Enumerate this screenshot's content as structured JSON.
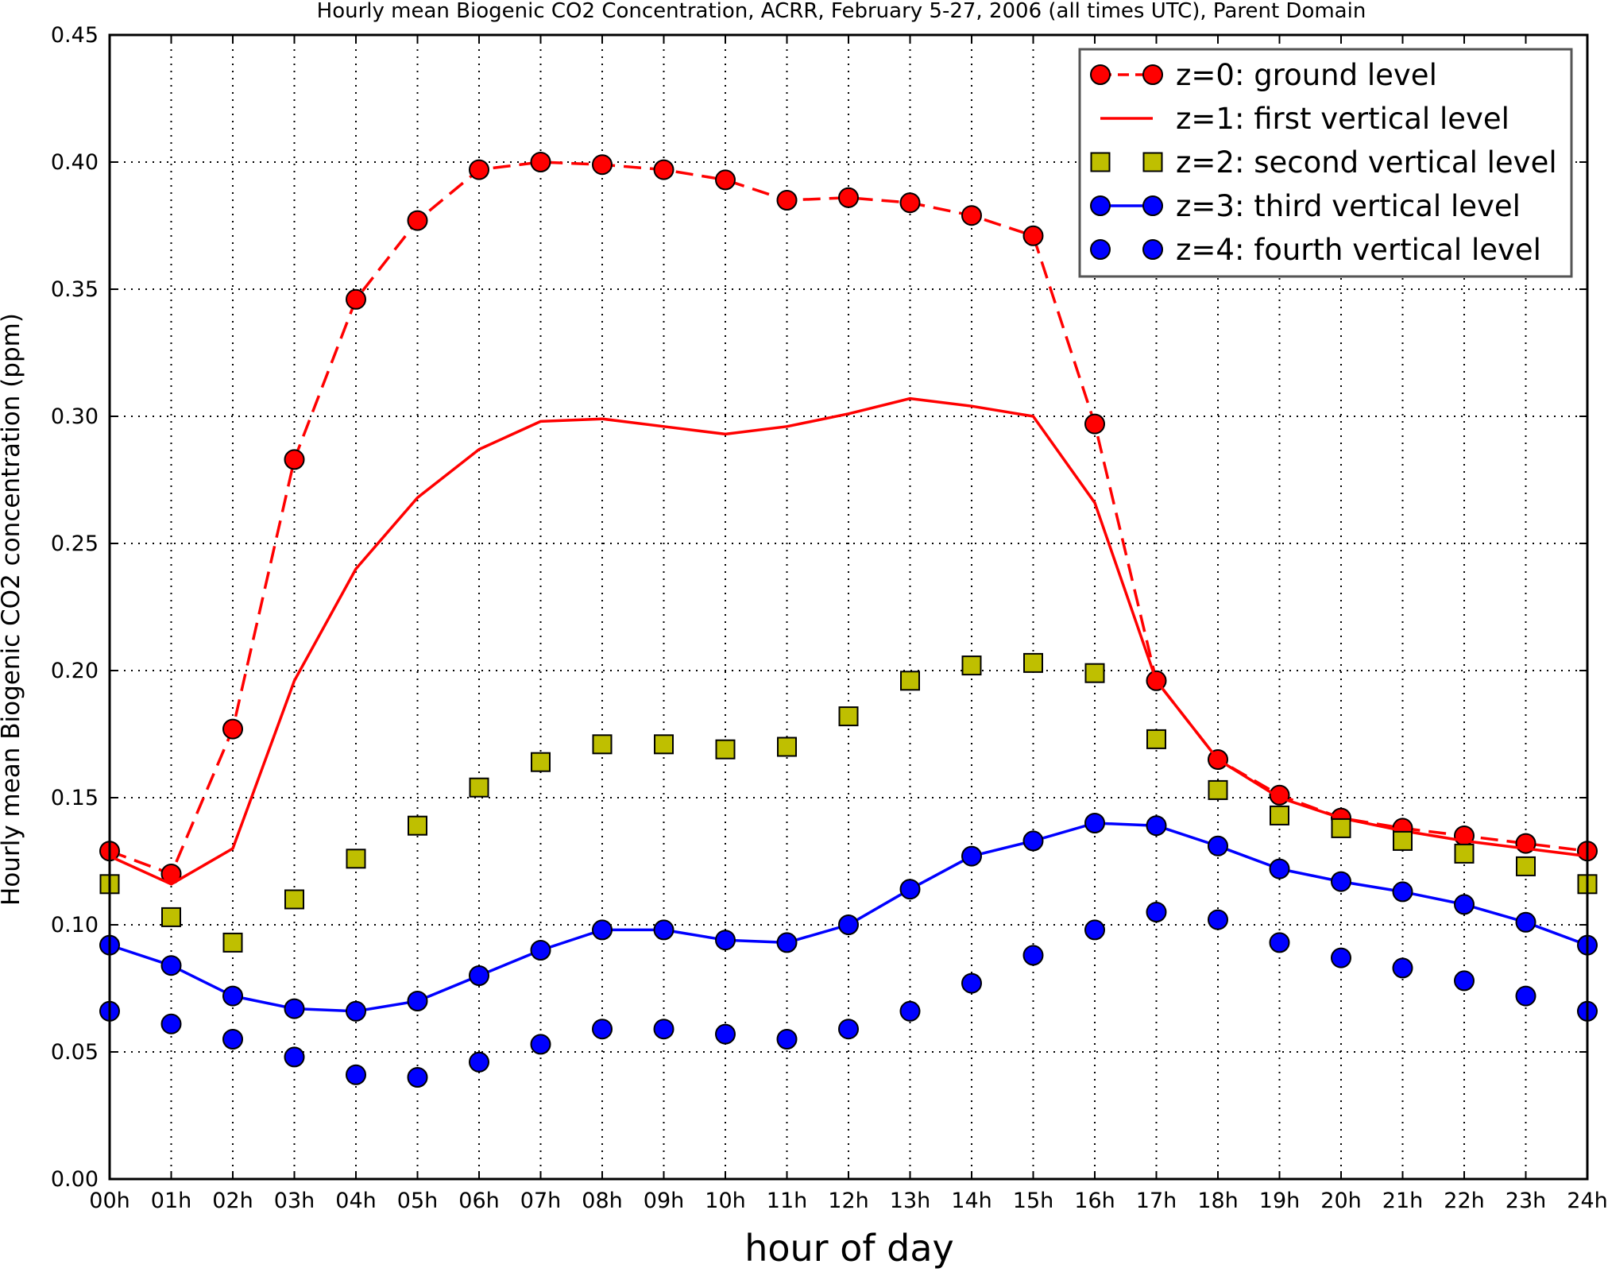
{
  "chart_data": {
    "type": "line",
    "title": "Hourly mean Biogenic CO2 Concentration, ACRR, February 5-27, 2006 (all times UTC), Parent Domain",
    "xlabel": "hour of day",
    "ylabel": "Hourly mean Biogenic CO2 concentration (ppm)",
    "categories": [
      "00h",
      "01h",
      "02h",
      "03h",
      "04h",
      "05h",
      "06h",
      "07h",
      "08h",
      "09h",
      "10h",
      "11h",
      "12h",
      "13h",
      "14h",
      "15h",
      "16h",
      "17h",
      "18h",
      "19h",
      "20h",
      "21h",
      "22h",
      "23h",
      "24h"
    ],
    "x": [
      0,
      1,
      2,
      3,
      4,
      5,
      6,
      7,
      8,
      9,
      10,
      11,
      12,
      13,
      14,
      15,
      16,
      17,
      18,
      19,
      20,
      21,
      22,
      23,
      24
    ],
    "ylim": [
      0,
      0.45
    ],
    "yticks": [
      "0.00",
      "0.05",
      "0.10",
      "0.15",
      "0.20",
      "0.25",
      "0.30",
      "0.35",
      "0.40",
      "0.45"
    ],
    "grid": true,
    "legend_position": "top-right",
    "series": [
      {
        "name": "z=0: ground level",
        "style": "dashed-line-circles",
        "color": "#ff0000",
        "values": [
          0.129,
          0.12,
          0.177,
          0.283,
          0.346,
          0.377,
          0.397,
          0.4,
          0.399,
          0.397,
          0.393,
          0.385,
          0.386,
          0.384,
          0.379,
          0.371,
          0.297,
          0.196,
          0.165,
          0.151,
          0.142,
          0.138,
          0.135,
          0.132,
          0.129
        ]
      },
      {
        "name": "z=1: first vertical level",
        "style": "solid-line",
        "color": "#ff0000",
        "values": [
          0.127,
          0.116,
          0.13,
          0.196,
          0.24,
          0.268,
          0.287,
          0.298,
          0.299,
          0.296,
          0.293,
          0.296,
          0.301,
          0.307,
          0.304,
          0.3,
          0.266,
          0.196,
          0.165,
          0.15,
          0.142,
          0.137,
          0.133,
          0.13,
          0.127
        ]
      },
      {
        "name": "z=2: second vertical level",
        "style": "squares",
        "color": "#bfbf00",
        "values": [
          0.116,
          0.103,
          0.093,
          0.11,
          0.126,
          0.139,
          0.154,
          0.164,
          0.171,
          0.171,
          0.169,
          0.17,
          0.182,
          0.196,
          0.202,
          0.203,
          0.199,
          0.173,
          0.153,
          0.143,
          0.138,
          0.133,
          0.128,
          0.123,
          0.116
        ]
      },
      {
        "name": "z=3: third vertical level",
        "style": "solid-line-circles",
        "color": "#0000ff",
        "values": [
          0.092,
          0.084,
          0.072,
          0.067,
          0.066,
          0.07,
          0.08,
          0.09,
          0.098,
          0.098,
          0.094,
          0.093,
          0.1,
          0.114,
          0.127,
          0.133,
          0.14,
          0.139,
          0.131,
          0.122,
          0.117,
          0.113,
          0.108,
          0.101,
          0.092
        ]
      },
      {
        "name": "z=4: fourth vertical level",
        "style": "circles",
        "color": "#0000ff",
        "values": [
          0.066,
          0.061,
          0.055,
          0.048,
          0.041,
          0.04,
          0.046,
          0.053,
          0.059,
          0.059,
          0.057,
          0.055,
          0.059,
          0.066,
          0.077,
          0.088,
          0.098,
          0.105,
          0.102,
          0.093,
          0.087,
          0.083,
          0.078,
          0.072,
          0.066
        ]
      }
    ]
  }
}
